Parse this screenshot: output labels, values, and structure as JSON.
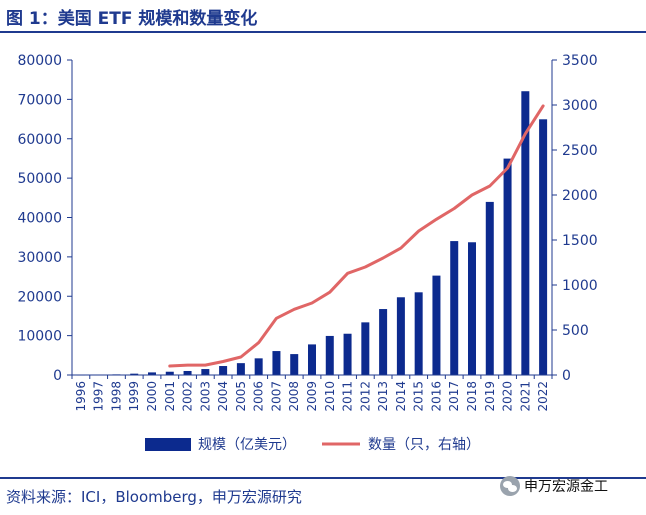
{
  "header": {
    "title": "图 1：美国 ETF 规模和数量变化"
  },
  "footer": {
    "source": "资料来源：ICI，Bloomberg，申万宏源研究",
    "watermark": "申万宏源金工"
  },
  "colors": {
    "accent": "#1f3a8f",
    "bar": "#0c2a8e",
    "line": "#e06666"
  },
  "chart_data": {
    "type": "bar+line",
    "categories": [
      "1996",
      "1997",
      "1998",
      "1999",
      "2000",
      "2001",
      "2002",
      "2003",
      "2004",
      "2005",
      "2006",
      "2007",
      "2008",
      "2009",
      "2010",
      "2011",
      "2012",
      "2013",
      "2014",
      "2015",
      "2016",
      "2017",
      "2018",
      "2019",
      "2020",
      "2021",
      "2022"
    ],
    "series": [
      {
        "name": "规模（亿美元）",
        "type": "bar",
        "axis": "left",
        "values": [
          20,
          70,
          160,
          340,
          660,
          830,
          1020,
          1510,
          2280,
          3010,
          4230,
          6080,
          5310,
          7770,
          9920,
          10480,
          13370,
          16750,
          19740,
          21000,
          25240,
          34010,
          33710,
          43960,
          54960,
          72070,
          64940
        ]
      },
      {
        "name": "数量（只，右轴）",
        "type": "line",
        "axis": "right",
        "values": [
          null,
          null,
          null,
          null,
          null,
          100,
          110,
          110,
          150,
          200,
          360,
          630,
          730,
          800,
          920,
          1130,
          1200,
          1300,
          1410,
          1600,
          1730,
          1850,
          2000,
          2100,
          2300,
          2680,
          2990
        ]
      }
    ],
    "yleft": {
      "ticks": [
        "0",
        "10000",
        "20000",
        "30000",
        "40000",
        "50000",
        "60000",
        "70000",
        "80000"
      ],
      "ylim": [
        0,
        80000
      ]
    },
    "yright": {
      "ticks": [
        "0",
        "500",
        "1000",
        "1500",
        "2000",
        "2500",
        "3000",
        "3500"
      ],
      "ylim": [
        0,
        3500
      ]
    },
    "legend": {
      "position": "bottom",
      "entries": [
        "规模（亿美元）",
        "数量（只，右轴）"
      ]
    }
  }
}
